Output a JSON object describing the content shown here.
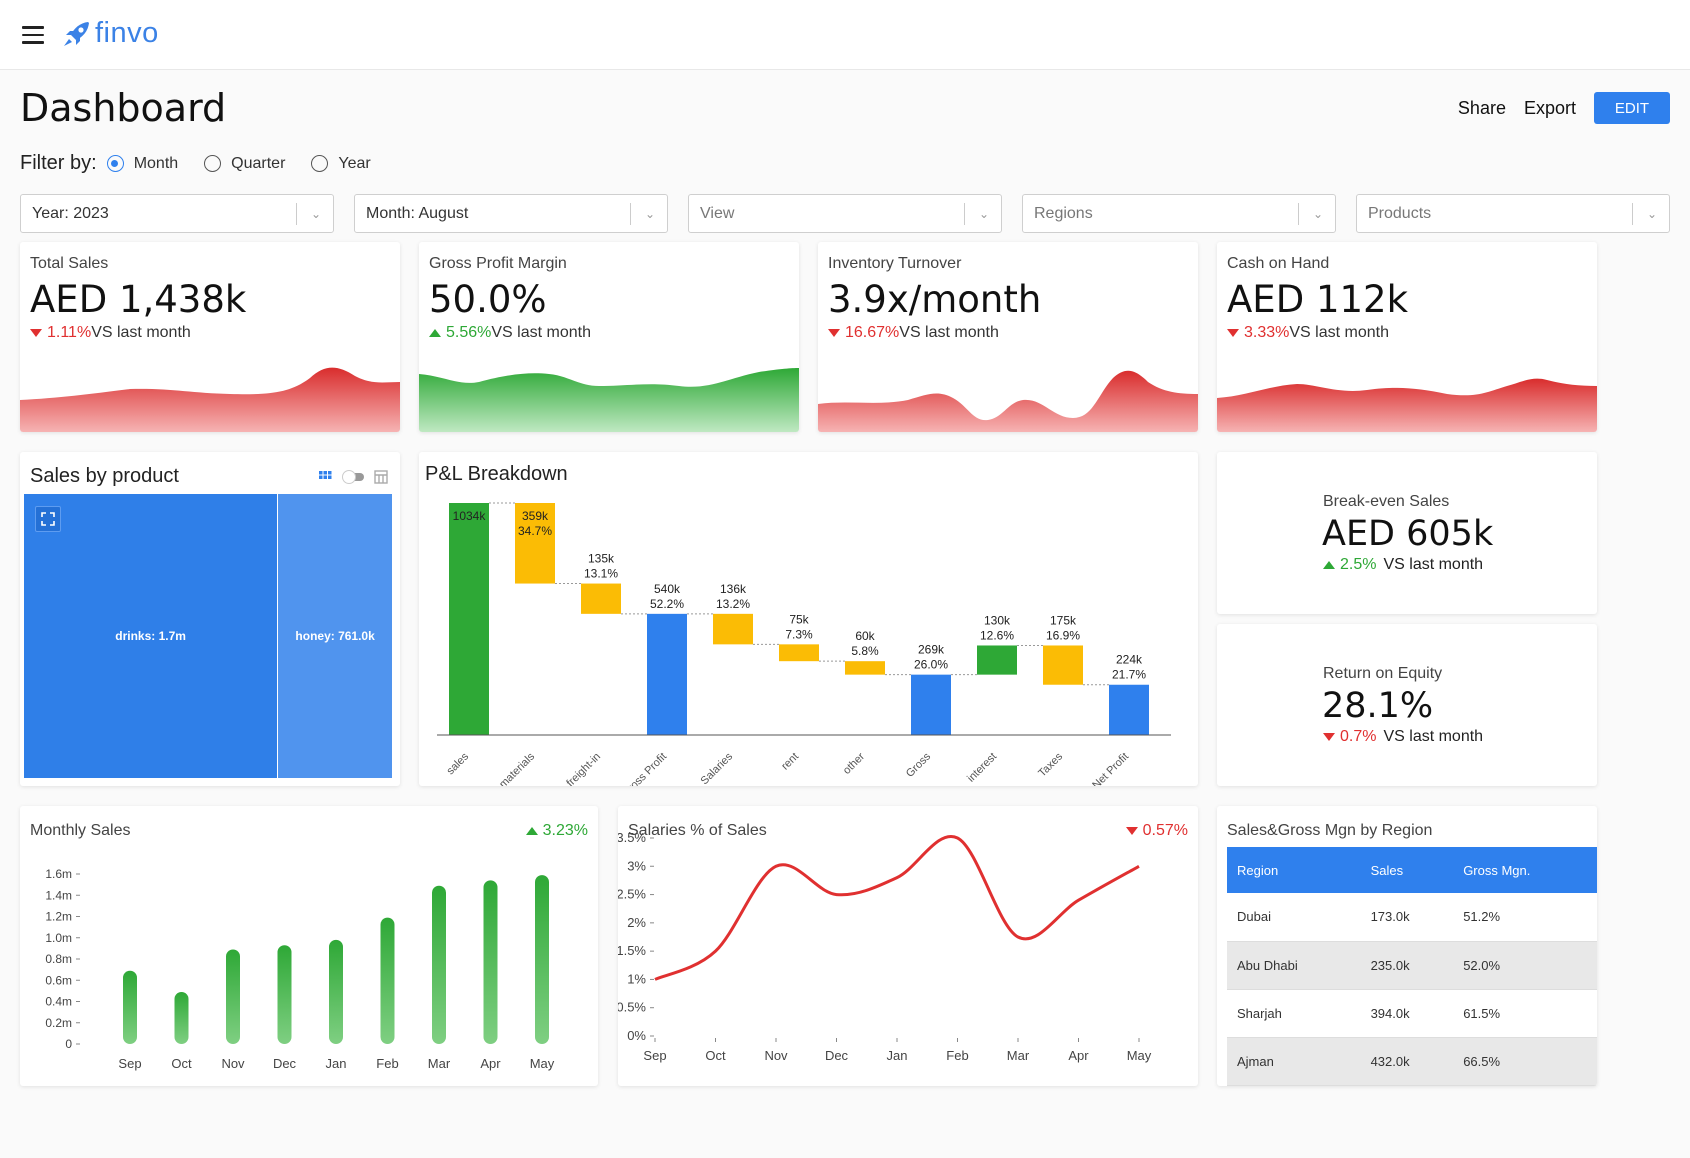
{
  "app": {
    "name": "finvo"
  },
  "header": {
    "title": "Dashboard",
    "share_label": "Share",
    "export_label": "Export",
    "edit_label": "EDIT"
  },
  "filter": {
    "label": "Filter by:",
    "options": [
      {
        "label": "Month",
        "selected": true
      },
      {
        "label": "Quarter",
        "selected": false
      },
      {
        "label": "Year",
        "selected": false
      }
    ]
  },
  "selects": [
    {
      "value": "Year: 2023"
    },
    {
      "value": "Month: August"
    },
    {
      "placeholder": "View"
    },
    {
      "placeholder": "Regions"
    },
    {
      "placeholder": "Products"
    }
  ],
  "kpis": [
    {
      "title": "Total Sales",
      "value": "AED 1,438k",
      "delta": "1.11%",
      "direction": "down",
      "suffix": "VS last month",
      "color": "#e03030"
    },
    {
      "title": "Gross Profit Margin",
      "value": "50.0%",
      "delta": "5.56%",
      "direction": "up",
      "suffix": "VS last month",
      "color": "#2ea836"
    },
    {
      "title": "Inventory Turnover",
      "value": "3.9x/month",
      "delta": "16.67%",
      "direction": "down",
      "suffix": "VS last month",
      "color": "#e03030"
    },
    {
      "title": "Cash on Hand",
      "value": "AED 112k",
      "delta": "3.33%",
      "direction": "down",
      "suffix": "VS last month",
      "color": "#e03030"
    }
  ],
  "sales_by_product": {
    "title": "Sales by product",
    "tiles": [
      {
        "label": "drinks: 1.7m",
        "value": 1.7
      },
      {
        "label": "honey: 761.0k",
        "value": 0.761
      }
    ]
  },
  "side_kpis": [
    {
      "title": "Break-even Sales",
      "value": "AED 605k",
      "delta": "2.5%",
      "direction": "up",
      "suffix": "VS last month"
    },
    {
      "title": "Return on Equity",
      "value": "28.1%",
      "delta": "0.7%",
      "direction": "down",
      "suffix": "VS last month"
    }
  ],
  "region_table": {
    "title": "Sales&Gross Mgn by Region",
    "columns": [
      "Region",
      "Sales",
      "Gross Mgn."
    ],
    "rows": [
      [
        "Dubai",
        "173.0k",
        "51.2%"
      ],
      [
        "Abu Dhabi",
        "235.0k",
        "52.0%"
      ],
      [
        "Sharjah",
        "394.0k",
        "61.5%"
      ],
      [
        "Ajman",
        "432.0k",
        "66.5%"
      ]
    ]
  },
  "colors": {
    "accent": "#2f80ed",
    "positive": "#2ea836",
    "negative": "#e03030",
    "cost": "#fbbc05"
  },
  "chart_data": [
    {
      "type": "bar",
      "chart": "pl_breakdown",
      "title": "P&L Breakdown",
      "categories": [
        "sales",
        "materials",
        "freight-in",
        "Gross Profit",
        "Salaries",
        "rent",
        "other",
        "Gross",
        "interest",
        "Taxes",
        "Net Profit"
      ],
      "values": [
        1034,
        -359,
        -135,
        540,
        -136,
        -75,
        -60,
        269,
        130,
        -175,
        224
      ],
      "kinds": [
        "total",
        "cost",
        "cost",
        "subtotal",
        "cost",
        "cost",
        "cost",
        "subtotal",
        "gain",
        "cost",
        "subtotal"
      ],
      "labels": [
        [
          "1034k"
        ],
        [
          "359k",
          "34.7%"
        ],
        [
          "135k",
          "13.1%"
        ],
        [
          "540k",
          "52.2%"
        ],
        [
          "136k",
          "13.2%"
        ],
        [
          "75k",
          "7.3%"
        ],
        [
          "60k",
          "5.8%"
        ],
        [
          "269k",
          "26.0%"
        ],
        [
          "130k",
          "12.6%"
        ],
        [
          "175k",
          "16.9%"
        ],
        [
          "224k",
          "21.7%"
        ]
      ]
    },
    {
      "type": "bar",
      "chart": "monthly_sales",
      "title": "Monthly Sales",
      "delta": "3.23%",
      "direction": "up",
      "categories": [
        "Sep",
        "Oct",
        "Nov",
        "Dec",
        "Jan",
        "Feb",
        "Mar",
        "Apr",
        "May"
      ],
      "values": [
        0.69,
        0.49,
        0.89,
        0.93,
        0.98,
        1.19,
        1.49,
        1.54,
        1.59
      ],
      "yticks": [
        "0",
        "0.2m",
        "0.4m",
        "0.6m",
        "0.8m",
        "1.0m",
        "1.2m",
        "1.4m",
        "1.6m"
      ],
      "ylim": [
        0,
        1.6
      ]
    },
    {
      "type": "line",
      "chart": "salaries_pct",
      "title": "Salaries % of Sales",
      "delta": "0.57%",
      "direction": "down",
      "categories": [
        "Sep",
        "Oct",
        "Nov",
        "Dec",
        "Jan",
        "Feb",
        "Mar",
        "Apr",
        "May"
      ],
      "values": [
        1.0,
        1.5,
        3.0,
        2.5,
        2.8,
        3.5,
        1.75,
        2.4,
        3.0
      ],
      "yticks": [
        "0%",
        "0.5%",
        "1%",
        "1.5%",
        "2%",
        "2.5%",
        "3%",
        "3.5%"
      ],
      "ylim": [
        0,
        3.5
      ]
    }
  ]
}
